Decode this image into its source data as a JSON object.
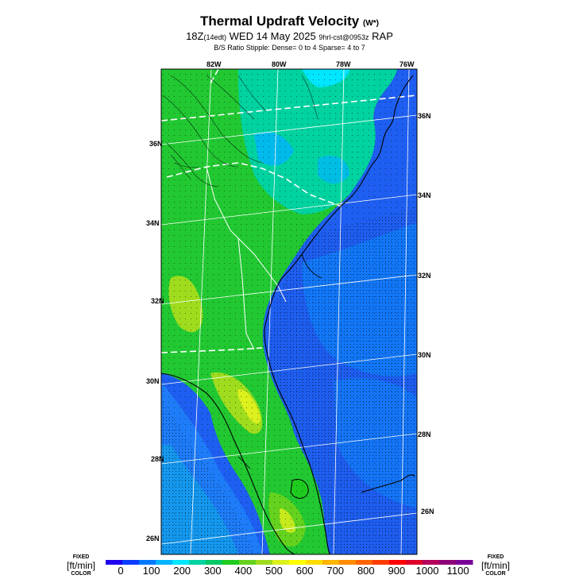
{
  "header": {
    "title": "Thermal Updraft Velocity",
    "title_unit": "(W*)",
    "subtitle_main": "18Z",
    "subtitle_edt": "(14edt)",
    "subtitle_date": "WED 14 May 2025",
    "subtitle_run": "9hrl-cst@0953z",
    "subtitle_model": "RAP",
    "stipple_note": "B/S Ratio Stipple:  Dense= 0 to 4  Sparse= 4 to 7"
  },
  "map": {
    "top_longitudes": [
      "82W",
      "80W",
      "78W",
      "76W"
    ],
    "right_latitudes": [
      "36N",
      "34N",
      "32N",
      "30N",
      "28N",
      "26N"
    ],
    "left_latitudes": [
      "36N",
      "34N",
      "32N",
      "30N",
      "28N",
      "26N"
    ]
  },
  "legend": {
    "left_fixed": "FIXED",
    "left_unit": "[ft/min]",
    "left_color": "COLOR",
    "right_fixed": "FIXED",
    "right_unit": "[ft/min]",
    "right_color": "COLOR",
    "ticks": [
      "0",
      "100",
      "200",
      "300",
      "400",
      "500",
      "600",
      "700",
      "800",
      "900",
      "1000",
      "1100"
    ],
    "colors": [
      "#1e00ee",
      "#0a3cff",
      "#0078ff",
      "#00b4ff",
      "#00e6ff",
      "#00d2a0",
      "#00c864",
      "#1ecb1e",
      "#64d21e",
      "#a0dc1e",
      "#dcf01e",
      "#ffff00",
      "#ffdc00",
      "#ffb400",
      "#ff8c00",
      "#ff6400",
      "#ff3c00",
      "#ff0000",
      "#dc0028",
      "#b4005a",
      "#8c0078",
      "#780096"
    ]
  }
}
